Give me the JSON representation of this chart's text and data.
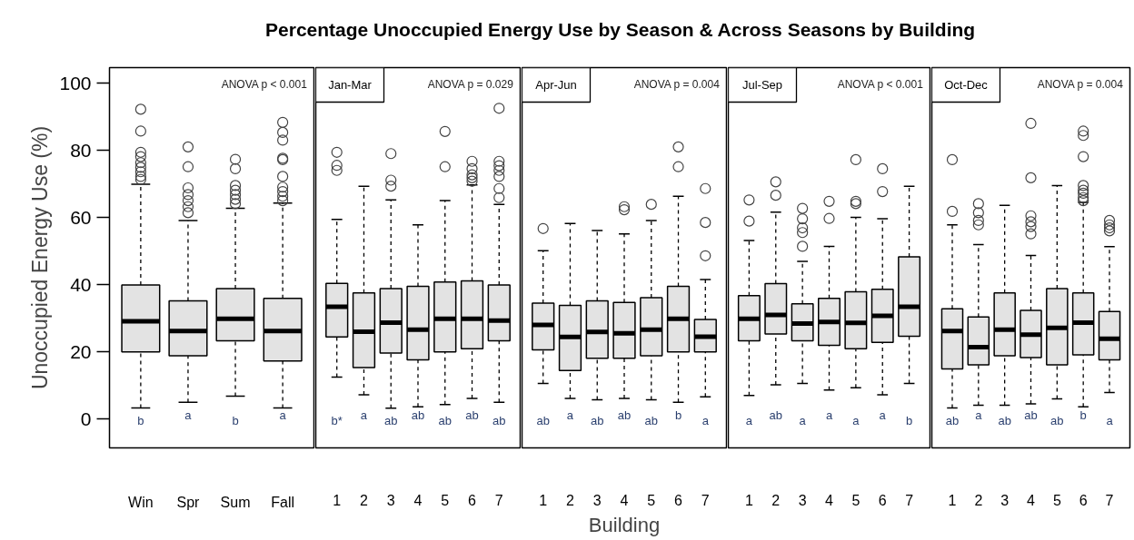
{
  "chart_data": [
    {
      "type": "box",
      "title": "Percentage Unoccupied Energy Use by Season & Across Seasons by Building",
      "ylabel": "Unoccupied Energy Use (%)",
      "categories": [
        "Win",
        "Spr",
        "Sum",
        "Fall"
      ],
      "ylim": [
        -8.6,
        104.6
      ],
      "yticks": [
        0,
        20,
        40,
        60,
        80,
        100
      ],
      "grid": false,
      "series": [
        {
          "color": "#e3e3e3",
          "boxes": [
            {
              "low": 3.3,
              "q1": 20.0,
              "median": 29.1,
              "q3": 39.9,
              "high": 69.9,
              "outliers": [
                92.2,
                85.7,
                79.4,
                78.1,
                76.3,
                74.9,
                73.6,
                72.2,
                71.3
              ]
            },
            {
              "low": 5.0,
              "q1": 18.8,
              "median": 26.2,
              "q3": 35.2,
              "high": 59.1,
              "outliers": [
                81.0,
                75.1,
                68.8,
                66.8,
                65.0,
                63.2,
                61.4
              ]
            },
            {
              "low": 6.8,
              "q1": 23.3,
              "median": 29.8,
              "q3": 38.8,
              "high": 62.7,
              "outliers": [
                77.3,
                74.5,
                69.5,
                68.1,
                66.8,
                65.4,
                64.1
              ]
            },
            {
              "low": 3.3,
              "q1": 17.3,
              "median": 26.2,
              "q3": 35.9,
              "high": 64.3,
              "outliers": [
                88.3,
                85.3,
                83.0,
                77.6,
                77.2,
                72.2,
                69.0,
                67.7,
                66.3,
                65.0
              ]
            }
          ]
        }
      ],
      "annotations": [
        "ANOVA p < 0.001",
        "b",
        "a",
        "b",
        "a"
      ]
    },
    {
      "type": "box",
      "subtitle": "Jan-Mar",
      "categories": [
        "1",
        "2",
        "3",
        "4",
        "5",
        "6",
        "7"
      ],
      "ylim": [
        -8.6,
        104.6
      ],
      "yticks": [
        0,
        20,
        40,
        60,
        80,
        100
      ],
      "grid": false,
      "tick_labels": "x",
      "series": [
        {
          "color": "#e3e3e3",
          "boxes": [
            {
              "low": 12.5,
              "q1": 24.4,
              "median": 33.4,
              "q3": 40.4,
              "high": 59.4,
              "outliers": [
                79.4,
                75.5,
                74.0
              ]
            },
            {
              "low": 7.2,
              "q1": 15.3,
              "median": 26.0,
              "q3": 37.5,
              "high": 69.3
            },
            {
              "low": 3.2,
              "q1": 19.6,
              "median": 28.7,
              "q3": 38.8,
              "high": 65.2,
              "outliers": [
                79.0,
                71.1,
                69.3
              ]
            },
            {
              "low": 3.6,
              "q1": 17.6,
              "median": 26.6,
              "q3": 39.5,
              "high": 57.8
            },
            {
              "low": 4.3,
              "q1": 20.0,
              "median": 29.8,
              "q3": 40.8,
              "high": 65.0,
              "outliers": [
                85.6,
                75.1
              ]
            },
            {
              "low": 6.1,
              "q1": 20.9,
              "median": 29.8,
              "q3": 41.1,
              "high": 69.7,
              "outliers": [
                76.7,
                74.5,
                72.7,
                71.8,
                70.8
              ]
            },
            {
              "low": 5.0,
              "q1": 23.3,
              "median": 29.3,
              "q3": 39.9,
              "high": 63.9,
              "outliers": [
                92.5,
                76.7,
                75.4,
                74.0,
                72.2,
                68.6,
                65.9
              ]
            }
          ]
        }
      ],
      "annotations": [
        "ANOVA p = 0.029",
        "b*",
        "a",
        "ab",
        "ab",
        "ab",
        "ab",
        "ab"
      ]
    },
    {
      "type": "box",
      "subtitle": "Apr-Jun",
      "xlabel": "Building",
      "categories": [
        "1",
        "2",
        "3",
        "4",
        "5",
        "6",
        "7"
      ],
      "ylim": [
        -8.6,
        104.6
      ],
      "yticks": [
        0,
        20,
        40,
        60,
        80,
        100
      ],
      "grid": false,
      "tick_labels": "x",
      "series": [
        {
          "color": "#e3e3e3",
          "boxes": [
            {
              "low": 10.6,
              "q1": 20.6,
              "median": 28.0,
              "q3": 34.5,
              "high": 50.1,
              "outliers": [
                56.7
              ]
            },
            {
              "low": 6.1,
              "q1": 14.4,
              "median": 24.4,
              "q3": 33.8,
              "high": 58.2
            },
            {
              "low": 5.7,
              "q1": 18.1,
              "median": 25.9,
              "q3": 35.2,
              "high": 56.1
            },
            {
              "low": 6.1,
              "q1": 18.1,
              "median": 25.5,
              "q3": 34.7,
              "high": 55.1,
              "outliers": [
                63.2,
                62.3
              ]
            },
            {
              "low": 5.7,
              "q1": 18.8,
              "median": 26.6,
              "q3": 36.1,
              "high": 59.1,
              "outliers": [
                63.9
              ]
            },
            {
              "low": 5.0,
              "q1": 20.0,
              "median": 29.8,
              "q3": 39.5,
              "high": 66.3,
              "outliers": [
                81.0,
                75.1
              ]
            },
            {
              "low": 6.6,
              "q1": 20.0,
              "median": 24.5,
              "q3": 29.6,
              "high": 41.5,
              "outliers": [
                68.6,
                58.5,
                48.6
              ]
            }
          ]
        }
      ],
      "annotations": [
        "ANOVA p = 0.004",
        "ab",
        "a",
        "ab",
        "ab",
        "ab",
        "b",
        "a"
      ]
    },
    {
      "type": "box",
      "subtitle": "Jul-Sep",
      "categories": [
        "1",
        "2",
        "3",
        "4",
        "5",
        "6",
        "7"
      ],
      "ylim": [
        -8.6,
        104.6
      ],
      "yticks": [
        0,
        20,
        40,
        60,
        80,
        100
      ],
      "grid": false,
      "tick_labels": "x",
      "series": [
        {
          "color": "#e3e3e3",
          "boxes": [
            {
              "low": 7.0,
              "q1": 23.3,
              "median": 29.8,
              "q3": 36.7,
              "high": 53.1,
              "outliers": [
                65.2,
                58.9
              ]
            },
            {
              "low": 10.2,
              "q1": 25.3,
              "median": 31.0,
              "q3": 40.3,
              "high": 61.6,
              "outliers": [
                70.6,
                66.6
              ]
            },
            {
              "low": 10.6,
              "q1": 23.3,
              "median": 28.4,
              "q3": 34.3,
              "high": 46.9,
              "outliers": [
                62.7,
                59.6,
                56.9,
                55.5,
                51.4
              ]
            },
            {
              "low": 8.6,
              "q1": 21.9,
              "median": 28.9,
              "q3": 35.9,
              "high": 51.4,
              "outliers": [
                64.8,
                59.7
              ]
            },
            {
              "low": 9.3,
              "q1": 20.9,
              "median": 28.6,
              "q3": 37.9,
              "high": 60.0,
              "outliers": [
                77.2,
                64.8,
                64.1
              ]
            },
            {
              "low": 7.2,
              "q1": 22.8,
              "median": 30.7,
              "q3": 38.6,
              "high": 59.6,
              "outliers": [
                74.5,
                67.7
              ]
            },
            {
              "low": 10.6,
              "q1": 24.6,
              "median": 33.4,
              "q3": 48.3,
              "high": 69.3
            }
          ]
        }
      ],
      "annotations": [
        "ANOVA p < 0.001",
        "a",
        "ab",
        "a",
        "a",
        "a",
        "a",
        "b"
      ]
    },
    {
      "type": "box",
      "subtitle": "Oct-Dec",
      "categories": [
        "1",
        "2",
        "3",
        "4",
        "5",
        "6",
        "7"
      ],
      "ylim": [
        -8.6,
        104.6
      ],
      "yticks": [
        0,
        20,
        40,
        60,
        80,
        100
      ],
      "grid": false,
      "tick_labels": "x",
      "series": [
        {
          "color": "#e3e3e3",
          "boxes": [
            {
              "low": 3.3,
              "q1": 14.9,
              "median": 26.2,
              "q3": 32.8,
              "high": 57.8,
              "outliers": [
                77.2,
                61.8
              ]
            },
            {
              "low": 4.1,
              "q1": 16.1,
              "median": 21.4,
              "q3": 30.4,
              "high": 51.9,
              "outliers": [
                64.1,
                61.4,
                59.1,
                57.8
              ]
            },
            {
              "low": 4.1,
              "q1": 18.8,
              "median": 26.6,
              "q3": 37.5,
              "high": 63.6
            },
            {
              "low": 4.5,
              "q1": 18.3,
              "median": 25.1,
              "q3": 32.3,
              "high": 48.7,
              "outliers": [
                88.0,
                71.8,
                60.5,
                58.7,
                57.3,
                55.1
              ]
            },
            {
              "low": 6.0,
              "q1": 16.1,
              "median": 27.1,
              "q3": 38.8,
              "high": 69.5
            },
            {
              "low": 3.6,
              "q1": 19.1,
              "median": 28.7,
              "q3": 37.5,
              "high": 64.5,
              "outliers": [
                85.7,
                84.4,
                78.1,
                69.5,
                68.1,
                67.2,
                65.9,
                65.0
              ]
            },
            {
              "low": 7.9,
              "q1": 17.6,
              "median": 23.9,
              "q3": 32.0,
              "high": 51.3,
              "outliers": [
                59.1,
                57.8,
                56.9,
                56.0
              ]
            }
          ]
        }
      ],
      "annotations": [
        "ANOVA p = 0.004",
        "ab",
        "a",
        "ab",
        "ab",
        "ab",
        "b",
        "a"
      ]
    }
  ]
}
